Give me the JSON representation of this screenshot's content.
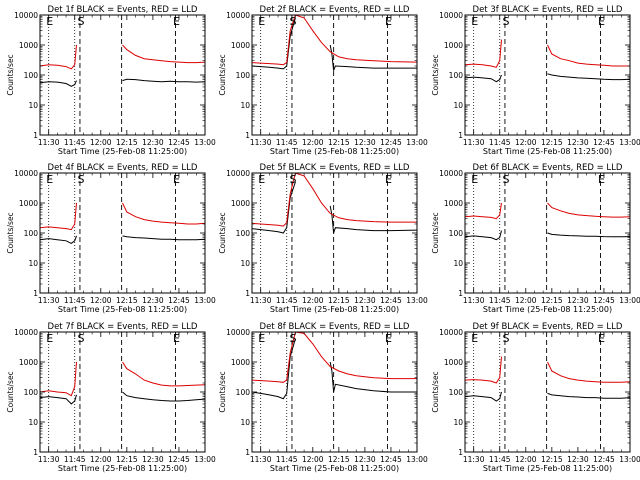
{
  "figure": {
    "ylabel": "Counts/sec",
    "xlabel": "Start Time (25-Feb-08 11:25:00)",
    "x_tick_labels": [
      "11:30",
      "11:45",
      "12:00",
      "12:15",
      "12:30",
      "12:45",
      "13:00"
    ],
    "y_tick_labels": [
      "1",
      "10",
      "100",
      "1000",
      "10000"
    ],
    "marker_labels": [
      "E",
      "S",
      "E"
    ],
    "colors": {
      "events": "#000000",
      "lld": "#dd0000",
      "background": "#ffffff",
      "axes": "#000000"
    }
  },
  "chart_data": [
    {
      "type": "line",
      "title": "Det 1f BLACK = Events, RED = LLD",
      "xlabel": "Start Time (25-Feb-08 11:25:00)",
      "ylabel": "Counts/sec",
      "x_units": "minutes after 11:25:00",
      "xlim": [
        0,
        95
      ],
      "ylim": [
        1,
        10000
      ],
      "y_scale": "log",
      "markers": {
        "dotted": [
          5,
          20
        ],
        "dashed": [
          23,
          47,
          78
        ],
        "letters": [
          "E",
          "S",
          "E"
        ]
      },
      "series": [
        {
          "name": "BLACK = Events",
          "x": [
            0,
            5,
            10,
            15,
            18,
            20,
            21,
            22,
            47,
            47.5,
            50,
            55,
            60,
            65,
            70,
            75,
            80,
            85,
            90,
            95
          ],
          "y": [
            55,
            60,
            58,
            52,
            42,
            48,
            65,
            null,
            null,
            65,
            72,
            70,
            65,
            62,
            60,
            62,
            60,
            60,
            58,
            60
          ]
        },
        {
          "name": "RED = LLD",
          "x": [
            0,
            5,
            10,
            15,
            18,
            20,
            21,
            22,
            47,
            47.5,
            50,
            55,
            60,
            65,
            70,
            75,
            80,
            85,
            90,
            95
          ],
          "y": [
            200,
            220,
            210,
            190,
            160,
            220,
            1000,
            null,
            null,
            1000,
            700,
            450,
            350,
            320,
            300,
            280,
            270,
            260,
            260,
            270
          ]
        }
      ]
    },
    {
      "type": "line",
      "title": "Det 2f BLACK = Events, RED = LLD",
      "xlabel": "Start Time (25-Feb-08 11:25:00)",
      "ylabel": "Counts/sec",
      "x_units": "minutes after 11:25:00",
      "xlim": [
        0,
        95
      ],
      "ylim": [
        1,
        10000
      ],
      "y_scale": "log",
      "markers": {
        "dotted": [
          5,
          20
        ],
        "dashed": [
          23,
          47,
          78
        ],
        "letters": [
          "E",
          "S",
          "E"
        ]
      },
      "series": [
        {
          "name": "BLACK = Events",
          "x": [
            0,
            5,
            10,
            15,
            18,
            20,
            22,
            25,
            30,
            35,
            40,
            45,
            46,
            47,
            48,
            55,
            60,
            70,
            80,
            95
          ],
          "y": [
            200,
            190,
            180,
            170,
            160,
            200,
            2000,
            8000,
            null,
            null,
            null,
            1000,
            500,
            140,
            200,
            190,
            180,
            170,
            170,
            170
          ]
        },
        {
          "name": "RED = LLD",
          "x": [
            0,
            5,
            10,
            15,
            18,
            20,
            22,
            25,
            30,
            35,
            40,
            45,
            50,
            55,
            60,
            70,
            80,
            95
          ],
          "y": [
            260,
            250,
            240,
            230,
            220,
            260,
            3000,
            10000,
            8000,
            3000,
            1200,
            600,
            400,
            350,
            320,
            300,
            280,
            270
          ]
        }
      ]
    },
    {
      "type": "line",
      "title": "Det 3f BLACK = Events, RED = LLD",
      "xlabel": "Start Time (25-Feb-08 11:25:00)",
      "ylabel": "Counts/sec",
      "x_units": "minutes after 11:25:00",
      "xlim": [
        0,
        95
      ],
      "ylim": [
        1,
        10000
      ],
      "y_scale": "log",
      "markers": {
        "dotted": [
          5,
          20
        ],
        "dashed": [
          23,
          47,
          78
        ],
        "letters": [
          "E",
          "S",
          "E"
        ]
      },
      "series": [
        {
          "name": "BLACK = Events",
          "x": [
            0,
            5,
            10,
            15,
            18,
            20,
            21,
            22,
            47,
            47.5,
            50,
            55,
            60,
            65,
            70,
            75,
            80,
            85,
            90,
            95
          ],
          "y": [
            80,
            85,
            80,
            75,
            60,
            70,
            100,
            null,
            null,
            110,
            100,
            90,
            85,
            80,
            78,
            75,
            72,
            70,
            70,
            72
          ]
        },
        {
          "name": "RED = LLD",
          "x": [
            0,
            5,
            10,
            15,
            18,
            20,
            21,
            22,
            47,
            47.5,
            50,
            55,
            60,
            65,
            70,
            75,
            80,
            85,
            90,
            95
          ],
          "y": [
            220,
            230,
            220,
            200,
            180,
            300,
            1500,
            null,
            null,
            1000,
            500,
            350,
            300,
            250,
            230,
            220,
            210,
            200,
            200,
            200
          ]
        }
      ]
    },
    {
      "type": "line",
      "title": "Det 4f BLACK = Events, RED = LLD",
      "xlabel": "Start Time (25-Feb-08 11:25:00)",
      "ylabel": "Counts/sec",
      "x_units": "minutes after 11:25:00",
      "xlim": [
        0,
        95
      ],
      "ylim": [
        1,
        10000
      ],
      "y_scale": "log",
      "markers": {
        "dotted": [
          5,
          20
        ],
        "dashed": [
          23,
          47,
          78
        ],
        "letters": [
          "E",
          "S",
          "E"
        ]
      },
      "series": [
        {
          "name": "BLACK = Events",
          "x": [
            0,
            5,
            10,
            15,
            18,
            20,
            21,
            22,
            47,
            47.5,
            50,
            55,
            60,
            65,
            70,
            75,
            80,
            85,
            90,
            95
          ],
          "y": [
            60,
            65,
            60,
            55,
            45,
            55,
            80,
            null,
            null,
            80,
            75,
            70,
            68,
            65,
            62,
            62,
            60,
            60,
            60,
            62
          ]
        },
        {
          "name": "RED = LLD",
          "x": [
            0,
            5,
            10,
            15,
            18,
            20,
            21,
            22,
            47,
            47.5,
            50,
            55,
            60,
            65,
            70,
            75,
            80,
            85,
            90,
            95
          ],
          "y": [
            150,
            160,
            150,
            140,
            130,
            200,
            1000,
            null,
            null,
            1000,
            500,
            350,
            280,
            250,
            230,
            220,
            210,
            200,
            200,
            210
          ]
        }
      ]
    },
    {
      "type": "line",
      "title": "Det 5f BLACK = Events, RED = LLD",
      "xlabel": "Start Time (25-Feb-08 11:25:00)",
      "ylabel": "Counts/sec",
      "x_units": "minutes after 11:25:00",
      "xlim": [
        0,
        95
      ],
      "ylim": [
        1,
        10000
      ],
      "y_scale": "log",
      "markers": {
        "dotted": [
          5,
          20
        ],
        "dashed": [
          23,
          47,
          78
        ],
        "letters": [
          "E",
          "S",
          "E"
        ]
      },
      "series": [
        {
          "name": "BLACK = Events",
          "x": [
            0,
            5,
            10,
            15,
            18,
            20,
            22,
            25,
            30,
            35,
            40,
            45,
            46,
            47,
            48,
            55,
            60,
            70,
            80,
            95
          ],
          "y": [
            140,
            130,
            120,
            110,
            100,
            150,
            1500,
            5000,
            null,
            null,
            null,
            800,
            400,
            100,
            150,
            140,
            130,
            120,
            120,
            125
          ]
        },
        {
          "name": "RED = LLD",
          "x": [
            0,
            5,
            10,
            15,
            18,
            20,
            22,
            25,
            30,
            35,
            40,
            45,
            50,
            55,
            60,
            70,
            80,
            95
          ],
          "y": [
            210,
            200,
            190,
            180,
            170,
            220,
            2000,
            10000,
            8000,
            3000,
            1000,
            450,
            320,
            280,
            260,
            240,
            230,
            230
          ]
        }
      ]
    },
    {
      "type": "line",
      "title": "Det 6f BLACK = Events, RED = LLD",
      "xlabel": "Start Time (25-Feb-08 11:25:00)",
      "ylabel": "Counts/sec",
      "x_units": "minutes after 11:25:00",
      "xlim": [
        0,
        95
      ],
      "ylim": [
        1,
        10000
      ],
      "y_scale": "log",
      "markers": {
        "dotted": [
          5,
          20
        ],
        "dashed": [
          23,
          47,
          78
        ],
        "letters": [
          "E",
          "S",
          "E"
        ]
      },
      "series": [
        {
          "name": "BLACK = Events",
          "x": [
            0,
            5,
            10,
            15,
            18,
            20,
            21,
            22,
            47,
            47.5,
            50,
            55,
            60,
            65,
            70,
            75,
            80,
            85,
            90,
            95
          ],
          "y": [
            75,
            80,
            75,
            70,
            60,
            70,
            120,
            null,
            null,
            100,
            90,
            85,
            82,
            80,
            78,
            78,
            76,
            75,
            75,
            76
          ]
        },
        {
          "name": "RED = LLD",
          "x": [
            0,
            5,
            10,
            15,
            18,
            20,
            21,
            22,
            47,
            47.5,
            50,
            55,
            60,
            65,
            70,
            75,
            80,
            85,
            90,
            95
          ],
          "y": [
            350,
            370,
            350,
            330,
            300,
            400,
            1000,
            null,
            null,
            1000,
            700,
            550,
            450,
            400,
            380,
            360,
            350,
            340,
            340,
            350
          ]
        }
      ]
    },
    {
      "type": "line",
      "title": "Det 7f BLACK = Events, RED = LLD",
      "xlabel": "Start Time (25-Feb-08 11:25:00)",
      "ylabel": "Counts/sec",
      "x_units": "minutes after 11:25:00",
      "xlim": [
        0,
        95
      ],
      "ylim": [
        1,
        10000
      ],
      "y_scale": "log",
      "markers": {
        "dotted": [
          5,
          20
        ],
        "dashed": [
          23,
          47,
          78
        ],
        "letters": [
          "E",
          "S",
          "E"
        ]
      },
      "series": [
        {
          "name": "BLACK = Events",
          "x": [
            0,
            5,
            10,
            15,
            18,
            20,
            21,
            22,
            47,
            47.5,
            50,
            55,
            60,
            65,
            70,
            75,
            80,
            85,
            90,
            95
          ],
          "y": [
            65,
            70,
            65,
            60,
            40,
            50,
            80,
            null,
            null,
            100,
            75,
            65,
            60,
            55,
            52,
            50,
            50,
            52,
            55,
            58
          ]
        },
        {
          "name": "RED = LLD",
          "x": [
            0,
            5,
            10,
            15,
            18,
            20,
            21,
            22,
            47,
            47.5,
            50,
            55,
            60,
            65,
            70,
            75,
            80,
            85,
            90,
            95
          ],
          "y": [
            100,
            110,
            100,
            95,
            75,
            150,
            1000,
            null,
            null,
            1000,
            600,
            400,
            250,
            200,
            170,
            160,
            160,
            165,
            170,
            175
          ]
        }
      ]
    },
    {
      "type": "line",
      "title": "Det 8f BLACK = Events, RED = LLD",
      "xlabel": "Start Time (25-Feb-08 11:25:00)",
      "ylabel": "Counts/sec",
      "x_units": "minutes after 11:25:00",
      "xlim": [
        0,
        95
      ],
      "ylim": [
        1,
        10000
      ],
      "y_scale": "log",
      "markers": {
        "dotted": [
          5,
          20
        ],
        "dashed": [
          23,
          47,
          78
        ],
        "letters": [
          "E",
          "S",
          "E"
        ]
      },
      "series": [
        {
          "name": "BLACK = Events",
          "x": [
            0,
            5,
            10,
            15,
            18,
            20,
            22,
            25,
            30,
            35,
            40,
            45,
            46,
            47,
            48,
            55,
            60,
            70,
            80,
            95
          ],
          "y": [
            100,
            90,
            80,
            70,
            60,
            90,
            1500,
            6000,
            null,
            null,
            null,
            1000,
            500,
            100,
            180,
            150,
            130,
            110,
            100,
            100
          ]
        },
        {
          "name": "RED = LLD",
          "x": [
            0,
            5,
            10,
            15,
            18,
            20,
            22,
            25,
            30,
            35,
            40,
            45,
            50,
            55,
            60,
            70,
            80,
            95
          ],
          "y": [
            250,
            240,
            230,
            220,
            210,
            250,
            2000,
            10000,
            9000,
            4000,
            1500,
            700,
            500,
            400,
            350,
            300,
            280,
            280
          ]
        }
      ]
    },
    {
      "type": "line",
      "title": "Det 9f BLACK = Events, RED = LLD",
      "xlabel": "Start Time (25-Feb-08 11:25:00)",
      "ylabel": "Counts/sec",
      "x_units": "minutes after 11:25:00",
      "xlim": [
        0,
        95
      ],
      "ylim": [
        1,
        10000
      ],
      "y_scale": "log",
      "markers": {
        "dotted": [
          5,
          20
        ],
        "dashed": [
          23,
          47,
          78
        ],
        "letters": [
          "E",
          "S",
          "E"
        ]
      },
      "series": [
        {
          "name": "BLACK = Events",
          "x": [
            0,
            5,
            10,
            15,
            18,
            20,
            21,
            22,
            47,
            47.5,
            50,
            55,
            60,
            65,
            70,
            75,
            80,
            85,
            90,
            95
          ],
          "y": [
            70,
            75,
            70,
            65,
            50,
            60,
            100,
            null,
            null,
            90,
            80,
            75,
            70,
            68,
            65,
            65,
            62,
            62,
            62,
            65
          ]
        },
        {
          "name": "RED = LLD",
          "x": [
            0,
            5,
            10,
            15,
            18,
            20,
            21,
            22,
            47,
            47.5,
            50,
            55,
            60,
            65,
            70,
            75,
            80,
            85,
            90,
            95
          ],
          "y": [
            250,
            260,
            250,
            230,
            200,
            300,
            1500,
            null,
            null,
            1000,
            500,
            350,
            280,
            250,
            230,
            220,
            210,
            210,
            210,
            220
          ]
        }
      ]
    }
  ]
}
